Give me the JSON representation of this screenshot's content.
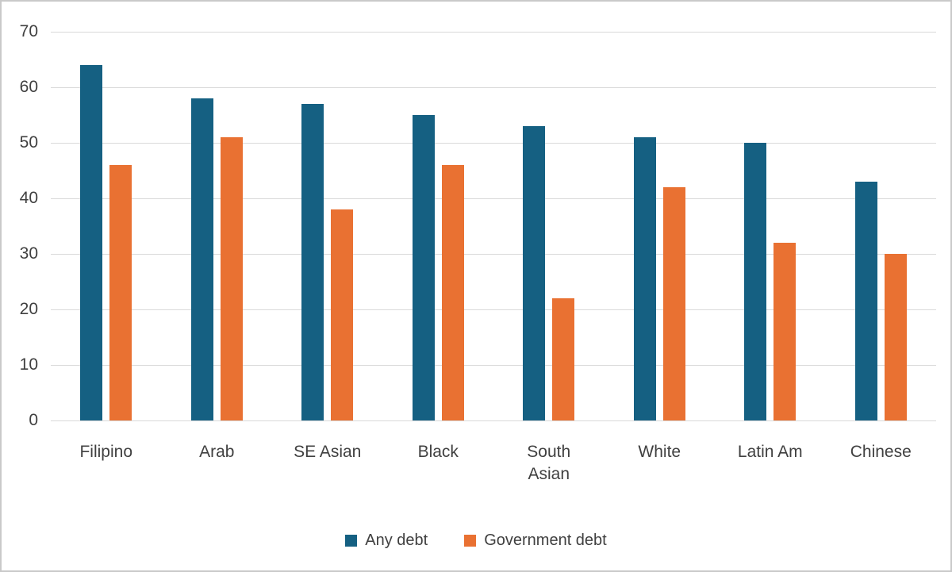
{
  "chart_data": {
    "type": "bar",
    "title": "",
    "categories": [
      "Filipino",
      "Arab",
      "SE Asian",
      "Black",
      "South Asian",
      "White",
      "Latin Am",
      "Chinese"
    ],
    "series": [
      {
        "name": "Any debt",
        "color": "#156082",
        "values": [
          64,
          58,
          57,
          55,
          53,
          51,
          50,
          43
        ]
      },
      {
        "name": "Government debt",
        "color": "#E97132",
        "values": [
          46,
          51,
          38,
          46,
          22,
          42,
          32,
          30
        ]
      }
    ],
    "ylim": [
      0,
      70
    ],
    "yticks": [
      0,
      10,
      20,
      30,
      40,
      50,
      60,
      70
    ],
    "xlabel": "",
    "ylabel": "",
    "grid": true,
    "legend_position": "bottom",
    "gridline_color": "#d9d9d9",
    "text_color": "#404040"
  }
}
